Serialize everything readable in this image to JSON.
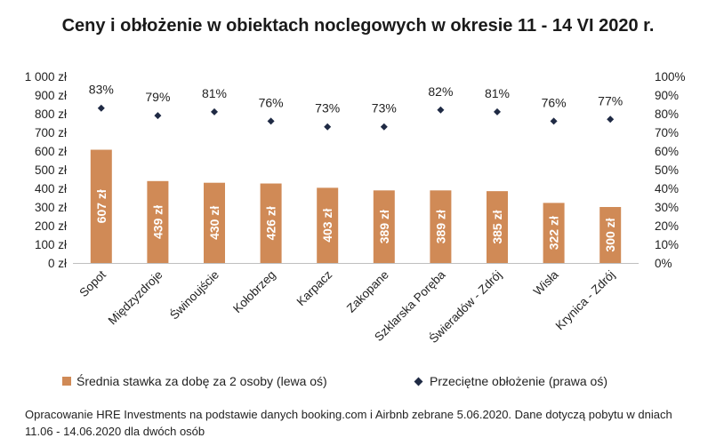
{
  "chart_data": {
    "type": "bar",
    "title": "Ceny i obłożenie w obiektach noclegowych w okresie 11 - 14 VI 2020 r.",
    "categories": [
      "Sopot",
      "Międzyzdroje",
      "Świnoujście",
      "Kołobrzeg",
      "Karpacz",
      "Zakopane",
      "Szklarska Poręba",
      "Świeradów - Zdrój",
      "Wisła",
      "Krynica - Zdrój"
    ],
    "series": [
      {
        "name": "Średnia stawka za dobę za 2 osoby (lewa oś)",
        "type": "bar",
        "axis": "left",
        "color": "#d08a56",
        "values": [
          607,
          439,
          430,
          426,
          403,
          389,
          389,
          385,
          322,
          300
        ],
        "labels": [
          "607 zł",
          "439 zł",
          "430 zł",
          "426 zł",
          "403 zł",
          "389 zł",
          "389 zł",
          "385 zł",
          "322 zł",
          "300 zł"
        ]
      },
      {
        "name": "Przeciętne obłożenie (prawa oś)",
        "type": "scatter",
        "axis": "right",
        "color": "#1f2a44",
        "values": [
          83,
          79,
          81,
          76,
          73,
          73,
          82,
          81,
          76,
          77
        ],
        "labels": [
          "83%",
          "79%",
          "81%",
          "76%",
          "73%",
          "73%",
          "82%",
          "81%",
          "76%",
          "77%"
        ]
      }
    ],
    "ylim": [
      0,
      1000
    ],
    "y2lim": [
      0,
      100
    ],
    "y_ticks": [
      0,
      100,
      200,
      300,
      400,
      500,
      600,
      700,
      800,
      900,
      1000
    ],
    "y_tick_labels": [
      "0 zł",
      "100 zł",
      "200 zł",
      "300 zł",
      "400 zł",
      "500 zł",
      "600 zł",
      "700 zł",
      "800 zł",
      "900 zł",
      "1 000 zł"
    ],
    "y2_ticks": [
      0,
      10,
      20,
      30,
      40,
      50,
      60,
      70,
      80,
      90,
      100
    ],
    "y2_tick_labels": [
      "0%",
      "10%",
      "20%",
      "30%",
      "40%",
      "50%",
      "60%",
      "70%",
      "80%",
      "90%",
      "100%"
    ],
    "grid": false,
    "legend_position": "bottom"
  },
  "legend": {
    "bar_label": "Średnia stawka za dobę za 2 osoby (lewa oś)",
    "marker_label": "Przeciętne obłożenie (prawa oś)"
  },
  "source_note": "Opracowanie HRE Investments na podstawie danych booking.com i Airbnb zebrane 5.06.2020. Dane dotyczą pobytu w dniach 11.06 - 14.06.2020 dla dwóch osób"
}
